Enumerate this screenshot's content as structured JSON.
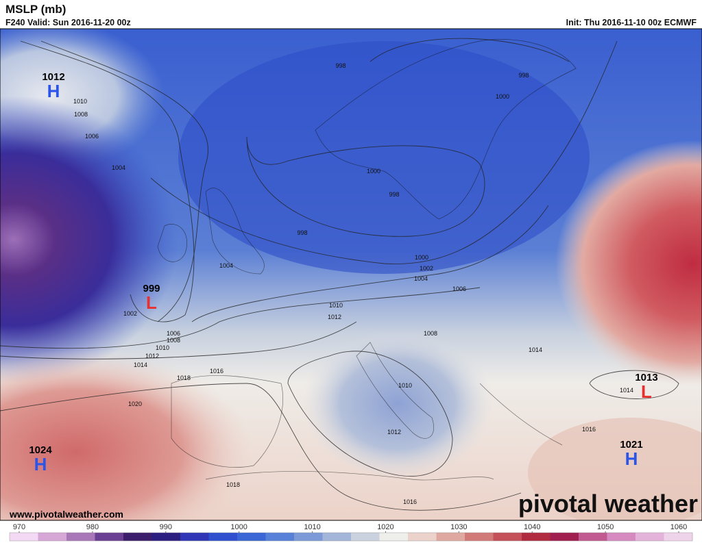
{
  "header": {
    "title": "MSLP (mb)",
    "valid": "F240 Valid: Sun 2016-11-20 00z",
    "init": "Init: Thu 2016-11-10 00z ECMWF"
  },
  "pressure_centers": [
    {
      "type": "H",
      "value": "1012"
    },
    {
      "type": "L",
      "value": "999"
    },
    {
      "type": "H",
      "value": "1024"
    },
    {
      "type": "L",
      "value": "1013"
    },
    {
      "type": "H",
      "value": "1021"
    }
  ],
  "isobar_labels": [
    "998",
    "998",
    "1010",
    "1008",
    "1006",
    "1004",
    "1000",
    "1000",
    "998",
    "998",
    "1004",
    "1000",
    "1002",
    "1004",
    "1006",
    "1010",
    "1012",
    "1002",
    "1006",
    "1008",
    "1010",
    "1012",
    "1014",
    "1016",
    "1018",
    "1020",
    "1008",
    "1014",
    "1010",
    "1012",
    "1014",
    "1016",
    "1018",
    "1016"
  ],
  "watermark": "www.pivotalweather.com",
  "logo": "pivotal weather",
  "colorbar": {
    "ticks": [
      970,
      980,
      990,
      1000,
      1010,
      1020,
      1030,
      1040,
      1050,
      1060
    ],
    "colors": [
      "#f3d9f3",
      "#d6a6d6",
      "#a877b8",
      "#6a3f93",
      "#3b1d6b",
      "#2a1f80",
      "#2f35b5",
      "#2f4fcf",
      "#3b66d6",
      "#5780d8",
      "#7c9ad8",
      "#a3b5d8",
      "#c9d2de",
      "#eeeeea",
      "#ebd3cc",
      "#dfa8a0",
      "#d27a78",
      "#c4505a",
      "#b02a40",
      "#a01f4f",
      "#c05a90",
      "#d68ac0",
      "#e4b3da",
      "#efd3ea"
    ]
  }
}
